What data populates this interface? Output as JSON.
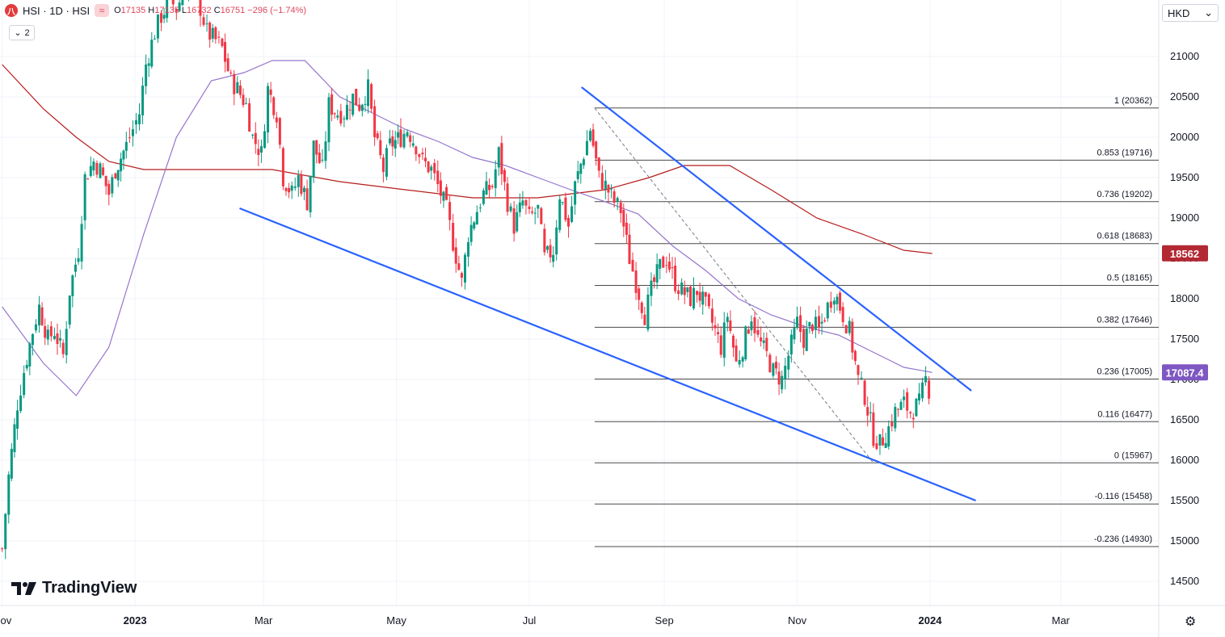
{
  "header": {
    "symbol_label": "HSI · 1D · HSI",
    "logo_letter": "八",
    "wave_glyph": "≈",
    "ohlc": {
      "o_label": "O",
      "o": "17135",
      "h_label": "H",
      "h": "17135",
      "l_label": "L",
      "l": "16732",
      "c_label": "C",
      "c": "16751",
      "change": "−296 (−1.74%)"
    },
    "collapse_count": "2",
    "collapse_glyph": "⌄"
  },
  "currency": {
    "label": "HKD",
    "chevron": "⌄"
  },
  "branding": {
    "name": "TradingView"
  },
  "settings_icon": "gear-icon",
  "colors": {
    "up": "#089981",
    "down": "#f23645",
    "trend": "#2962ff",
    "ma_short": "#9575cd",
    "ma_long": "#b71c1c",
    "fib": "#555555",
    "badge_ma": "#b22833",
    "badge_price": "#7e57c2"
  },
  "chart_data": {
    "type": "candlestick",
    "title": "",
    "x_axis": {
      "labels": [
        "Nov",
        "2023",
        "Mar",
        "May",
        "Jul",
        "Sep",
        "Nov",
        "2024",
        "Mar"
      ],
      "range": [
        "2022-10-31",
        "2024-04-15"
      ]
    },
    "y_axis": {
      "ticks": [
        14500,
        15000,
        15500,
        16000,
        16500,
        17000,
        17500,
        18000,
        18500,
        19000,
        19500,
        20000,
        20500,
        21000
      ],
      "range": [
        14200,
        21700
      ]
    },
    "price_labels": [
      {
        "name": "MA",
        "value": "18562"
      },
      {
        "name": "Price",
        "value": "17087.4"
      }
    ],
    "fibonacci": {
      "levels": [
        {
          "text": "1 (20362)",
          "value": 20362
        },
        {
          "text": "0.853 (19716)",
          "value": 19716
        },
        {
          "text": "0.736 (19202)",
          "value": 19202
        },
        {
          "text": "0.618 (18683)",
          "value": 18683
        },
        {
          "text": "0.5 (18165)",
          "value": 18165
        },
        {
          "text": "0.382 (17646)",
          "value": 17646
        },
        {
          "text": "0.236 (17005)",
          "value": 17005
        },
        {
          "text": "0.116 (16477)",
          "value": 16477
        },
        {
          "text": "0 (15967)",
          "value": 15967
        },
        {
          "text": "-0.116 (15458)",
          "value": 15458
        },
        {
          "text": "-0.236 (14930)",
          "value": 14930
        }
      ],
      "start": "2023-07-31",
      "end": "2024-01-02"
    },
    "trendlines": [
      {
        "name": "upper-channel",
        "from": [
          "2023-07-25",
          20620
        ],
        "to": [
          "2024-01-20",
          16860
        ]
      },
      {
        "name": "lower-channel",
        "from": [
          "2023-02-18",
          19120
        ],
        "to": [
          "2024-01-22",
          15500
        ]
      },
      {
        "name": "fib-diagonal",
        "from": [
          "2023-07-31",
          20362
        ],
        "to": [
          "2023-12-06",
          15967
        ],
        "dashed": true
      }
    ],
    "series": [
      {
        "name": "",
        "kind": "candles",
        "points": [
          [
            "2022-11-01",
            14900
          ],
          [
            "2022-11-04",
            15800
          ],
          [
            "2022-11-08",
            16700
          ],
          [
            "2022-11-11",
            17100
          ],
          [
            "2022-11-15",
            17600
          ],
          [
            "2022-11-18",
            17900
          ],
          [
            "2022-11-22",
            17500
          ],
          [
            "2022-11-25",
            17600
          ],
          [
            "2022-11-29",
            17300
          ],
          [
            "2022-12-02",
            18100
          ],
          [
            "2022-12-06",
            18600
          ],
          [
            "2022-12-09",
            19500
          ],
          [
            "2022-12-13",
            19700
          ],
          [
            "2022-12-16",
            19600
          ],
          [
            "2022-12-20",
            19300
          ],
          [
            "2022-12-23",
            19600
          ],
          [
            "2022-12-28",
            19900
          ],
          [
            "2023-01-03",
            20300
          ],
          [
            "2023-01-06",
            20900
          ],
          [
            "2023-01-10",
            21300
          ],
          [
            "2023-01-13",
            21500
          ],
          [
            "2023-01-17",
            21700
          ],
          [
            "2023-01-20",
            21600
          ],
          [
            "2023-01-27",
            22000
          ],
          [
            "2023-01-31",
            21600
          ],
          [
            "2023-02-03",
            21300
          ],
          [
            "2023-02-07",
            21200
          ],
          [
            "2023-02-10",
            21100
          ],
          [
            "2023-02-14",
            20700
          ],
          [
            "2023-02-17",
            20600
          ],
          [
            "2023-02-21",
            20400
          ],
          [
            "2023-02-24",
            20000
          ],
          [
            "2023-02-28",
            19800
          ],
          [
            "2023-03-03",
            20600
          ],
          [
            "2023-03-07",
            20300
          ],
          [
            "2023-03-10",
            19500
          ],
          [
            "2023-03-14",
            19300
          ],
          [
            "2023-03-17",
            19500
          ],
          [
            "2023-03-21",
            19200
          ],
          [
            "2023-03-24",
            19900
          ],
          [
            "2023-03-28",
            19600
          ],
          [
            "2023-03-31",
            20400
          ],
          [
            "2023-04-04",
            20300
          ],
          [
            "2023-04-07",
            20300
          ],
          [
            "2023-04-11",
            20500
          ],
          [
            "2023-04-14",
            20400
          ],
          [
            "2023-04-18",
            20600
          ],
          [
            "2023-04-21",
            20000
          ],
          [
            "2023-04-25",
            19600
          ],
          [
            "2023-04-28",
            19900
          ],
          [
            "2023-05-03",
            20000
          ],
          [
            "2023-05-06",
            20100
          ],
          [
            "2023-05-10",
            19900
          ],
          [
            "2023-05-13",
            19700
          ],
          [
            "2023-05-17",
            19600
          ],
          [
            "2023-05-20",
            19400
          ],
          [
            "2023-05-24",
            19100
          ],
          [
            "2023-05-27",
            18700
          ],
          [
            "2023-05-31",
            18200
          ],
          [
            "2023-06-03",
            18800
          ],
          [
            "2023-06-07",
            19100
          ],
          [
            "2023-06-10",
            19300
          ],
          [
            "2023-06-14",
            19400
          ],
          [
            "2023-06-17",
            19800
          ],
          [
            "2023-06-21",
            19200
          ],
          [
            "2023-06-24",
            18900
          ],
          [
            "2023-06-28",
            19200
          ],
          [
            "2023-07-01",
            19000
          ],
          [
            "2023-07-05",
            19100
          ],
          [
            "2023-07-08",
            18500
          ],
          [
            "2023-07-12",
            18600
          ],
          [
            "2023-07-15",
            19300
          ],
          [
            "2023-07-19",
            18900
          ],
          [
            "2023-07-22",
            19400
          ],
          [
            "2023-07-26",
            19800
          ],
          [
            "2023-07-29",
            20100
          ],
          [
            "2023-08-02",
            19500
          ],
          [
            "2023-08-05",
            19400
          ],
          [
            "2023-08-09",
            19200
          ],
          [
            "2023-08-12",
            19100
          ],
          [
            "2023-08-16",
            18500
          ],
          [
            "2023-08-19",
            18200
          ],
          [
            "2023-08-23",
            17800
          ],
          [
            "2023-08-26",
            18100
          ],
          [
            "2023-08-30",
            18400
          ],
          [
            "2023-09-02",
            18500
          ],
          [
            "2023-09-06",
            18200
          ],
          [
            "2023-09-09",
            18100
          ],
          [
            "2023-09-13",
            18000
          ],
          [
            "2023-09-16",
            18100
          ],
          [
            "2023-09-20",
            17900
          ],
          [
            "2023-09-23",
            17700
          ],
          [
            "2023-09-27",
            17400
          ],
          [
            "2023-09-30",
            17800
          ],
          [
            "2023-10-04",
            17200
          ],
          [
            "2023-10-07",
            17400
          ],
          [
            "2023-10-11",
            17800
          ],
          [
            "2023-10-14",
            17500
          ],
          [
            "2023-10-18",
            17300
          ],
          [
            "2023-10-21",
            17100
          ],
          [
            "2023-10-25",
            17000
          ],
          [
            "2023-10-28",
            17300
          ],
          [
            "2023-11-01",
            17700
          ],
          [
            "2023-11-04",
            17500
          ],
          [
            "2023-11-08",
            17700
          ],
          [
            "2023-11-11",
            17600
          ],
          [
            "2023-11-15",
            17900
          ],
          [
            "2023-11-18",
            18100
          ],
          [
            "2023-11-22",
            17800
          ],
          [
            "2023-11-25",
            17600
          ],
          [
            "2023-11-29",
            17000
          ],
          [
            "2023-12-02",
            16800
          ],
          [
            "2023-12-06",
            16300
          ],
          [
            "2023-12-09",
            16200
          ],
          [
            "2023-12-13",
            16400
          ],
          [
            "2023-12-16",
            16600
          ],
          [
            "2023-12-20",
            16700
          ],
          [
            "2023-12-23",
            16600
          ],
          [
            "2023-12-27",
            16700
          ],
          [
            "2023-12-30",
            17000
          ],
          [
            "2024-01-02",
            16751
          ]
        ]
      },
      {
        "name": "",
        "kind": "line",
        "points": [
          [
            "2022-11-01",
            17900
          ],
          [
            "2022-11-20",
            17200
          ],
          [
            "2022-12-05",
            16800
          ],
          [
            "2022-12-20",
            17400
          ],
          [
            "2023-01-05",
            18800
          ],
          [
            "2023-01-20",
            20000
          ],
          [
            "2023-02-05",
            20700
          ],
          [
            "2023-02-20",
            20800
          ],
          [
            "2023-03-05",
            20950
          ],
          [
            "2023-03-20",
            20950
          ],
          [
            "2023-04-05",
            20500
          ],
          [
            "2023-04-20",
            20300
          ],
          [
            "2023-05-05",
            20100
          ],
          [
            "2023-05-20",
            19950
          ],
          [
            "2023-06-05",
            19750
          ],
          [
            "2023-06-20",
            19650
          ],
          [
            "2023-07-05",
            19500
          ],
          [
            "2023-07-20",
            19350
          ],
          [
            "2023-08-05",
            19200
          ],
          [
            "2023-08-20",
            19050
          ],
          [
            "2023-09-05",
            18650
          ],
          [
            "2023-09-20",
            18350
          ],
          [
            "2023-10-05",
            18000
          ],
          [
            "2023-10-20",
            17800
          ],
          [
            "2023-11-05",
            17650
          ],
          [
            "2023-11-20",
            17550
          ],
          [
            "2023-12-05",
            17350
          ],
          [
            "2023-12-20",
            17150
          ],
          [
            "2024-01-02",
            17087
          ]
        ]
      },
      {
        "name": "",
        "kind": "line",
        "points": [
          [
            "2022-11-01",
            20900
          ],
          [
            "2022-11-20",
            20350
          ],
          [
            "2022-12-05",
            20000
          ],
          [
            "2022-12-20",
            19700
          ],
          [
            "2023-01-05",
            19600
          ],
          [
            "2023-02-05",
            19600
          ],
          [
            "2023-03-05",
            19600
          ],
          [
            "2023-04-05",
            19450
          ],
          [
            "2023-05-05",
            19350
          ],
          [
            "2023-06-05",
            19250
          ],
          [
            "2023-07-05",
            19250
          ],
          [
            "2023-08-05",
            19350
          ],
          [
            "2023-08-25",
            19500
          ],
          [
            "2023-09-10",
            19650
          ],
          [
            "2023-10-01",
            19650
          ],
          [
            "2023-10-20",
            19350
          ],
          [
            "2023-11-10",
            19000
          ],
          [
            "2023-12-01",
            18800
          ],
          [
            "2023-12-20",
            18600
          ],
          [
            "2024-01-02",
            18560
          ]
        ]
      }
    ]
  }
}
